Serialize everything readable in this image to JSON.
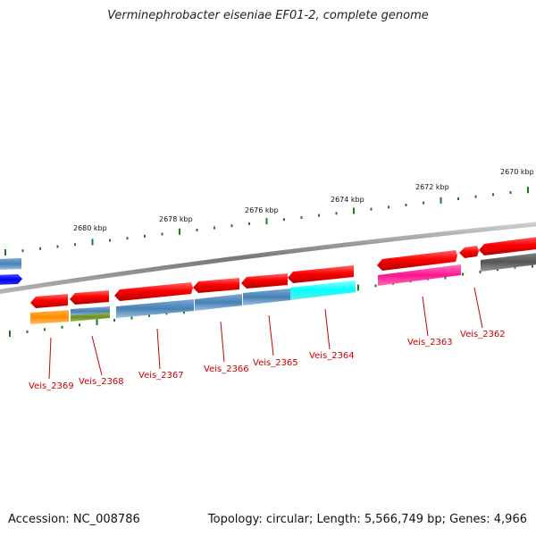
{
  "title": "Verminephrobacter eiseniae EF01-2, complete genome",
  "footer": {
    "accession": "Accession: NC_008786",
    "summary": "Topology: circular; Length: 5,566,749 bp; Genes: 4,966"
  },
  "colors": {
    "backbone": "#8a8a8a",
    "tick": "#1e7a1e",
    "label": "#cc0000",
    "forward_gene": "#ff0000",
    "leader_line": "#cc0000"
  },
  "chart_data": {
    "type": "genome-map",
    "scale_unit": "kbp",
    "scale_ticks": [
      {
        "pos": 2680,
        "label": "2680 kbp"
      },
      {
        "pos": 2678,
        "label": "2678 kbp"
      },
      {
        "pos": 2676,
        "label": "2676 kbp"
      },
      {
        "pos": 2674,
        "label": "2674 kbp"
      },
      {
        "pos": 2672,
        "label": "2672 kbp"
      },
      {
        "pos": 2670,
        "label": "2670 kbp"
      }
    ],
    "labeled_genes": [
      {
        "name": "Veis_2369",
        "color": "#ff8c00"
      },
      {
        "name": "Veis_2368",
        "color": "#6b8e23"
      },
      {
        "name": "Veis_2367",
        "color": "#4682b4"
      },
      {
        "name": "Veis_2366",
        "color": "#4682b4"
      },
      {
        "name": "Veis_2365",
        "color": "#4682b4"
      },
      {
        "name": "Veis_2364",
        "color": "#00ffff"
      },
      {
        "name": "Veis_2363",
        "color": "#ff1493"
      },
      {
        "name": "Veis_2362",
        "color": "#555555"
      }
    ]
  }
}
